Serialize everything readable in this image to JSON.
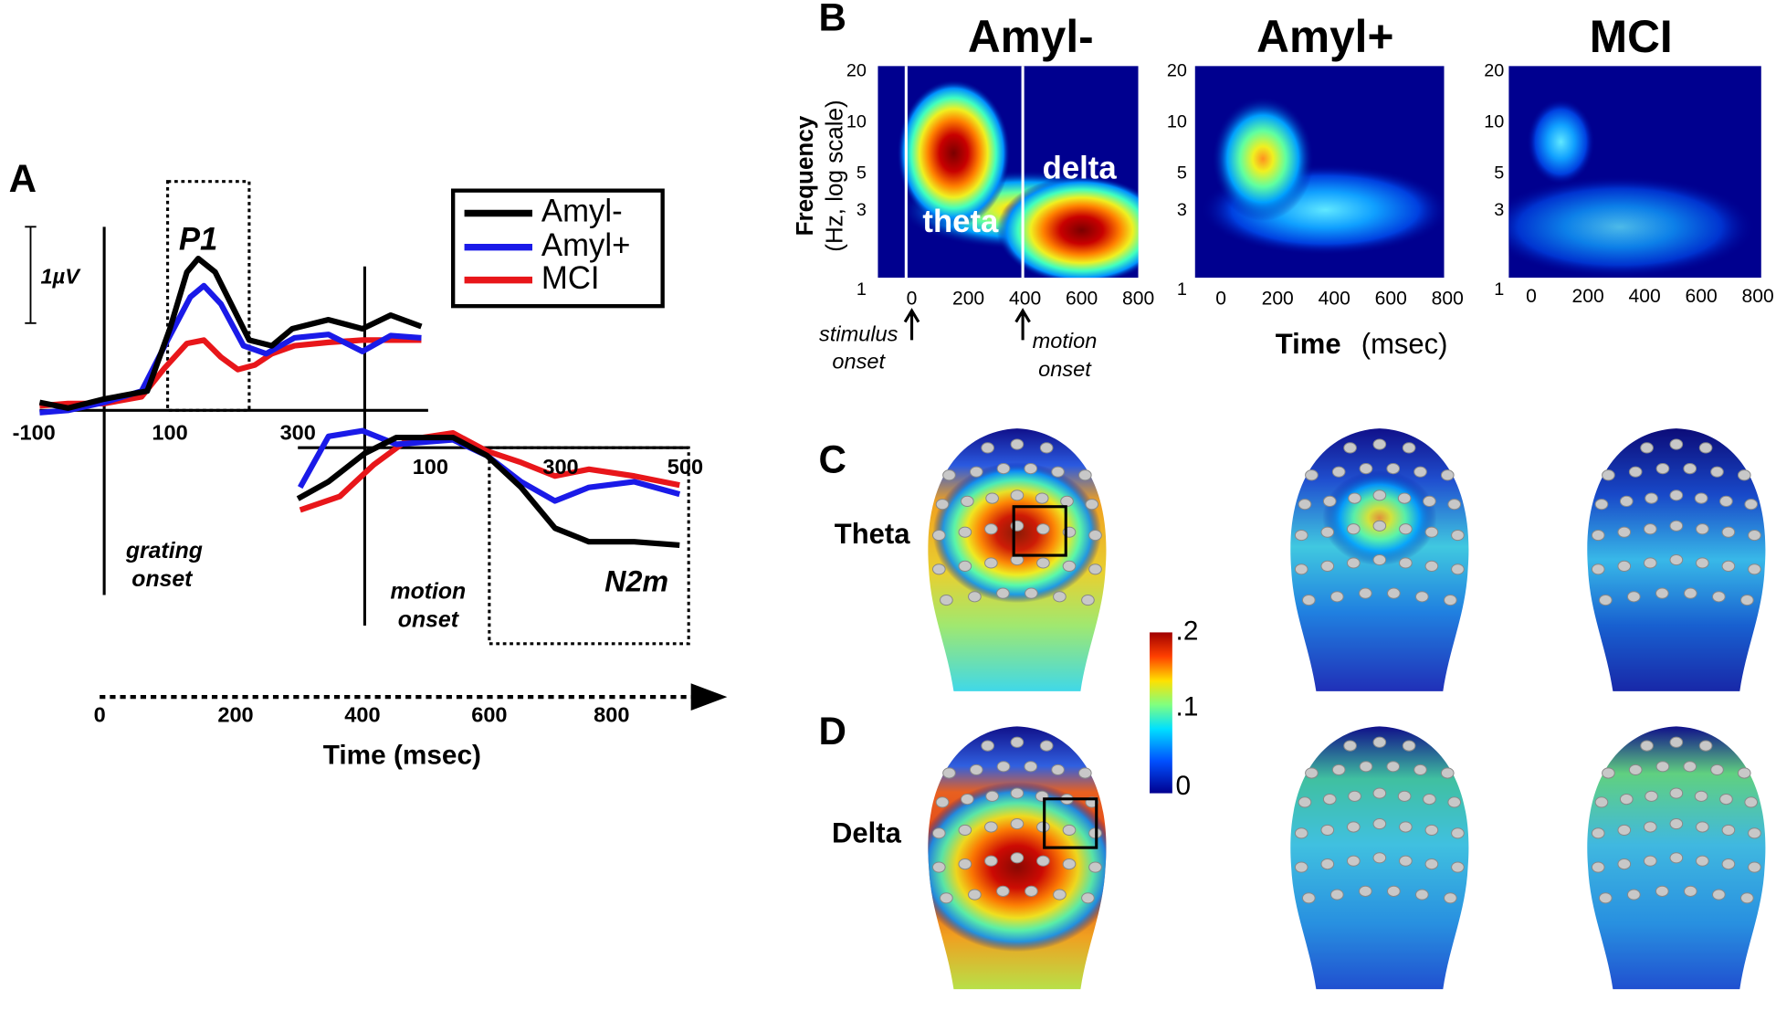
{
  "panels": {
    "A": {
      "label": "A",
      "peak_label": "P1",
      "scale_label": "1µV",
      "late_label": "N2m",
      "legend": [
        "Amyl-",
        "Amyl+",
        "MCI"
      ],
      "grating_axis_ticks": [
        "-100",
        "100",
        "300"
      ],
      "motion_axis_ticks": [
        "100",
        "300",
        "500"
      ],
      "grating_onset": [
        "grating",
        "onset"
      ],
      "motion_onset": [
        "motion",
        "onset"
      ],
      "time_ticks": [
        "0",
        "200",
        "400",
        "600",
        "800"
      ],
      "time_label": "Time (msec)"
    },
    "B": {
      "label": "B",
      "titles": [
        "Amyl-",
        "Amyl+",
        "MCI"
      ],
      "y_label": [
        "Frequency",
        "(Hz, log scale)"
      ],
      "y_ticks": [
        "20",
        "10",
        "5",
        "3",
        "1"
      ],
      "x_ticks": [
        "0",
        "200",
        "400",
        "600",
        "800"
      ],
      "band_labels": [
        "theta",
        "delta"
      ],
      "stimulus_onset": [
        "stimulus",
        "onset"
      ],
      "motion_onset": [
        "motion",
        "onset"
      ],
      "x_label": [
        "Time",
        "(msec)"
      ]
    },
    "C": {
      "label": "C",
      "row_label": "Theta"
    },
    "D": {
      "label": "D",
      "row_label": "Delta"
    },
    "colorbar": {
      "ticks": [
        ".2",
        ".1",
        "0"
      ]
    }
  }
}
